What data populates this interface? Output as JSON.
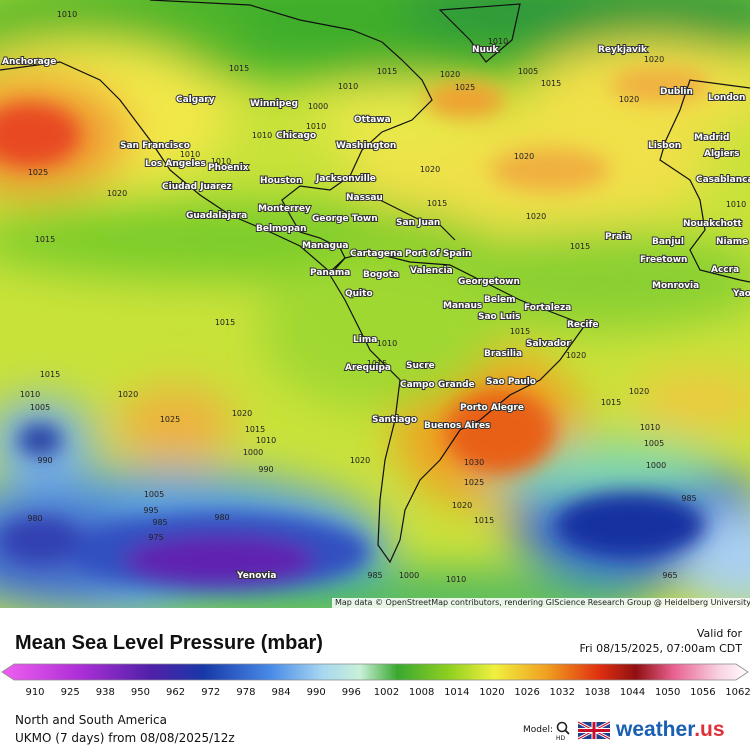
{
  "map": {
    "cities": [
      "Anchorage",
      "Calgary",
      "Winnipeg",
      "Nuuk",
      "Reykjavik",
      "Dublin",
      "London",
      "Ottawa",
      "Chicago",
      "Washington",
      "San Francisco",
      "Los Angeles",
      "Phoenix",
      "Madrid",
      "Lisbon",
      "Algiers",
      "Houston",
      "Jacksonville",
      "Ciudad Juarez",
      "Casablanca",
      "Nassau",
      "Monterrey",
      "Guadalajara",
      "George Town",
      "San Juan",
      "Belmopan",
      "Nouakchott",
      "Praia",
      "Banjul",
      "Niame",
      "Managua",
      "Cartagena",
      "Port of Spain",
      "Freetown",
      "Panama",
      "Bogota",
      "Valencia",
      "Accra",
      "Monrovia",
      "Georgetown",
      "Yao",
      "Quito",
      "Belem",
      "Fortaleza",
      "Manaus",
      "Sao Luis",
      "Recife",
      "Lima",
      "Salvador",
      "Brasilia",
      "Sucre",
      "Arequipa",
      "Campo Grande",
      "Sao Paulo",
      "Porto Alegre",
      "Santiago",
      "Buenos Aires",
      "Yenovia"
    ],
    "isobar_labels": [
      1010,
      1015,
      1015,
      1000,
      1010,
      1010,
      1010,
      1020,
      1025,
      1010,
      1005,
      1015,
      1020,
      1020,
      1010,
      1010,
      1025,
      1020,
      1015,
      1020,
      1020,
      1020,
      1015,
      1015,
      1010,
      1015,
      1010,
      1015,
      1020,
      1015,
      1015,
      1010,
      1005,
      1020,
      1025,
      1020,
      1015,
      1010,
      1000,
      990,
      990,
      1020,
      1025,
      1030,
      1020,
      1015,
      1020,
      1015,
      1010,
      1005,
      1000,
      985,
      1005,
      995,
      985,
      980,
      975,
      980,
      1010,
      1000,
      985,
      965
    ],
    "attribution": "Map data © OpenStreetMap contributors, rendering GIScience Research Group @ Heidelberg University"
  },
  "header": {
    "title": "Mean Sea Level Pressure (mbar)",
    "valid_label": "Valid for",
    "valid_time": "Fri 08/15/2025, 07:00am CDT"
  },
  "colorbar": {
    "ticks": [
      910,
      925,
      938,
      950,
      962,
      972,
      978,
      984,
      990,
      996,
      1002,
      1008,
      1014,
      1020,
      1026,
      1032,
      1038,
      1044,
      1050,
      1056,
      1062
    ]
  },
  "footer": {
    "region": "North and South America",
    "run": "UKMO (7 days) from 08/08/2025/12z",
    "model_label": "Model:",
    "model_icon_label": "HD",
    "brand_name": "weather",
    "brand_tld": ".us"
  }
}
